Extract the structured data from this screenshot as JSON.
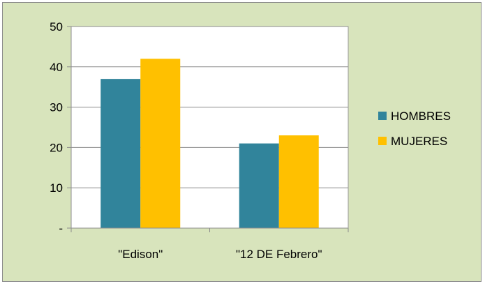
{
  "chart_data": {
    "type": "bar",
    "title": "",
    "xlabel": "",
    "ylabel": "",
    "categories": [
      "\"Edison\"",
      "\"12 DE Febrero\""
    ],
    "series": [
      {
        "name": "HOMBRES",
        "values": [
          37,
          21
        ],
        "color": "#31849b"
      },
      {
        "name": "MUJERES",
        "values": [
          42,
          23
        ],
        "color": "#ffc000"
      }
    ],
    "ylim": [
      0,
      50
    ],
    "yticks": [
      0,
      10,
      20,
      30,
      40,
      50
    ],
    "ytick_labels": [
      "-",
      "10",
      "20",
      "30",
      "40",
      "50"
    ],
    "grid": true,
    "legend": "right",
    "plot_background": "#ffffff",
    "chart_background": "#d8e4bc"
  }
}
